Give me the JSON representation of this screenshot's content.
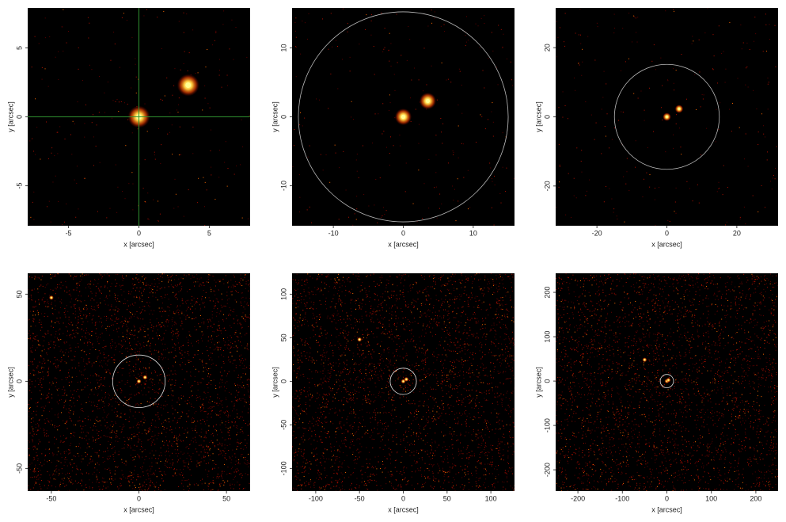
{
  "chart_data": [
    {
      "type": "image",
      "x_label": "x [arcsec]",
      "y_label": "y [arcsec]",
      "xlim": [
        -7.9,
        7.9
      ],
      "ylim": [
        -7.9,
        7.9
      ],
      "xticks": [
        -5,
        0,
        5
      ],
      "yticks": [
        -5,
        0,
        5
      ],
      "crosshair": {
        "x": 0,
        "y": 0,
        "color": "#2f8f2f"
      },
      "sources": {
        "x": [
          0,
          3.5
        ],
        "y": [
          0,
          2.3
        ],
        "color": "#ffff90"
      }
    },
    {
      "type": "image",
      "x_label": "x [arcsec]",
      "y_label": "y [arcsec]",
      "xlim": [
        -15.9,
        15.9
      ],
      "ylim": [
        -15.8,
        15.8
      ],
      "xticks": [
        -10,
        0,
        10
      ],
      "yticks": [
        -10,
        0,
        10
      ],
      "circle": {
        "x": 0,
        "y": 0,
        "r": 15,
        "color": "#bbbbbb"
      },
      "sources": {
        "x": [
          0,
          3.5
        ],
        "y": [
          0,
          2.3
        ],
        "color": "#ffff90"
      }
    },
    {
      "type": "image",
      "x_label": "x [arcsec]",
      "y_label": "y [arcsec]",
      "xlim": [
        -31.8,
        31.8
      ],
      "ylim": [
        -31.5,
        31.5
      ],
      "xticks": [
        -20,
        0,
        20
      ],
      "yticks": [
        -20,
        0,
        20
      ],
      "circle": {
        "x": 0,
        "y": 0,
        "r": 15,
        "color": "#bbbbbb"
      },
      "sources": {
        "x": [
          0,
          3.5
        ],
        "y": [
          0,
          2.3
        ],
        "color": "#ffff90"
      }
    },
    {
      "type": "image",
      "x_label": "x [arcsec]",
      "y_label": "y [arcsec]",
      "xlim": [
        -63.5,
        63.5
      ],
      "ylim": [
        -63,
        62
      ],
      "xticks": [
        -50,
        0,
        50
      ],
      "yticks": [
        -50,
        0,
        50
      ],
      "circle": {
        "x": 0,
        "y": 0,
        "r": 15,
        "color": "#dddddd"
      },
      "sources": {
        "x": [
          0,
          3.5,
          -50
        ],
        "y": [
          0,
          2.3,
          48
        ],
        "color": "#ffff90"
      }
    },
    {
      "type": "image",
      "x_label": "x [arcsec]",
      "y_label": "y [arcsec]",
      "xlim": [
        -127,
        127
      ],
      "ylim": [
        -126,
        124
      ],
      "xticks": [
        -100,
        -50,
        0,
        50,
        100
      ],
      "yticks": [
        -100,
        -50,
        0,
        50,
        100
      ],
      "circle": {
        "x": 0,
        "y": 0,
        "r": 15,
        "color": "#dddddd"
      },
      "sources": {
        "x": [
          0,
          3.5,
          -50
        ],
        "y": [
          0,
          2.3,
          48
        ],
        "color": "#ffff90"
      }
    },
    {
      "type": "image",
      "x_label": "x [arcsec]",
      "y_label": "y [arcsec]",
      "xlim": [
        -250,
        250
      ],
      "ylim": [
        -248,
        243
      ],
      "xticks": [
        -200,
        -100,
        0,
        100,
        200
      ],
      "yticks": [
        -200,
        -100,
        0,
        100,
        200
      ],
      "circle": {
        "x": 0,
        "y": 0,
        "r": 15,
        "color": "#dddddd"
      },
      "sources": {
        "x": [
          0,
          3.5,
          -50
        ],
        "y": [
          0,
          2.3,
          48
        ],
        "color": "#ffff90"
      }
    }
  ]
}
